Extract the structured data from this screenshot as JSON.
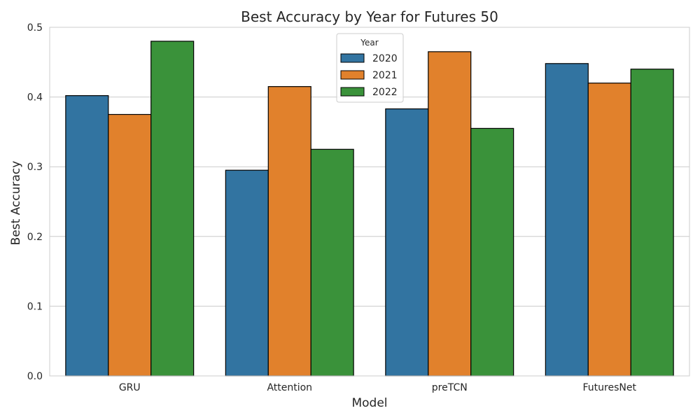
{
  "chart_data": {
    "type": "bar",
    "title": "Best Accuracy by Year for Futures 50",
    "xlabel": "Model",
    "ylabel": "Best Accuracy",
    "categories": [
      "GRU",
      "Attention",
      "preTCN",
      "FuturesNet"
    ],
    "series": [
      {
        "name": "2020",
        "color": "#3274a1",
        "values": [
          0.402,
          0.295,
          0.383,
          0.448
        ]
      },
      {
        "name": "2021",
        "color": "#e1812c",
        "values": [
          0.375,
          0.415,
          0.465,
          0.42
        ]
      },
      {
        "name": "2022",
        "color": "#3a923a",
        "values": [
          0.48,
          0.325,
          0.355,
          0.44
        ]
      }
    ],
    "ylim": [
      0,
      0.5
    ],
    "yticks": [
      "0.0",
      "0.1",
      "0.2",
      "0.3",
      "0.4",
      "0.5"
    ],
    "grid": true,
    "legend": {
      "title": "Year",
      "placement": "top-center"
    }
  }
}
